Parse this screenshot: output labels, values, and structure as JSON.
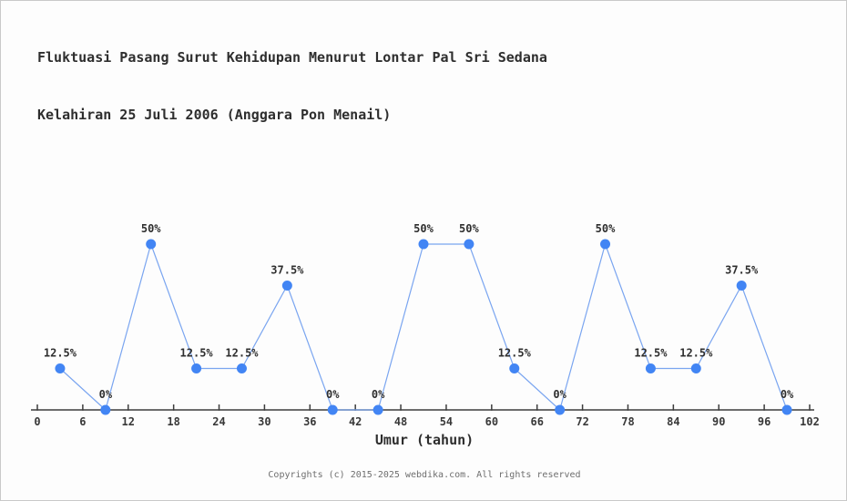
{
  "title": {
    "line1": "Fluktuasi Pasang Surut Kehidupan Menurut Lontar Pal Sri Sedana",
    "line2": "Kelahiran 25 Juli 2006 (Anggara Pon Menail)"
  },
  "footer": {
    "copyright": "Copyrights (c) 2015-2025 webdika.com. All rights reserved"
  },
  "chart_data": {
    "type": "line",
    "title": "Fluktuasi Pasang Surut Kehidupan Menurut Lontar Pal Sri Sedana Kelahiran 25 Juli 2006 (Anggara Pon Menail)",
    "xlabel": "Umur (tahun)",
    "ylabel": "",
    "x": [
      3,
      9,
      15,
      21,
      27,
      33,
      39,
      45,
      51,
      57,
      63,
      69,
      75,
      81,
      87,
      93,
      99
    ],
    "values": [
      12.5,
      0,
      50,
      12.5,
      12.5,
      37.5,
      0,
      0,
      50,
      50,
      12.5,
      0,
      50,
      12.5,
      12.5,
      37.5,
      0
    ],
    "point_labels": [
      "12.5%",
      "0%",
      "50%",
      "12.5%",
      "12.5%",
      "37.5%",
      "0%",
      "0%",
      "50%",
      "50%",
      "12.5%",
      "0%",
      "50%",
      "12.5%",
      "12.5%",
      "37.5%",
      "0%"
    ],
    "x_ticks": [
      0,
      6,
      12,
      18,
      24,
      30,
      36,
      42,
      48,
      54,
      60,
      66,
      72,
      78,
      84,
      90,
      96,
      102
    ],
    "xlim": [
      0,
      102
    ],
    "ylim": [
      0,
      55
    ],
    "grid": false,
    "legend": null,
    "colors": {
      "marker": "#4285f4",
      "line": "#7aa5f0",
      "axis": "#3d3d3d",
      "label": "#2e2e2e"
    }
  }
}
